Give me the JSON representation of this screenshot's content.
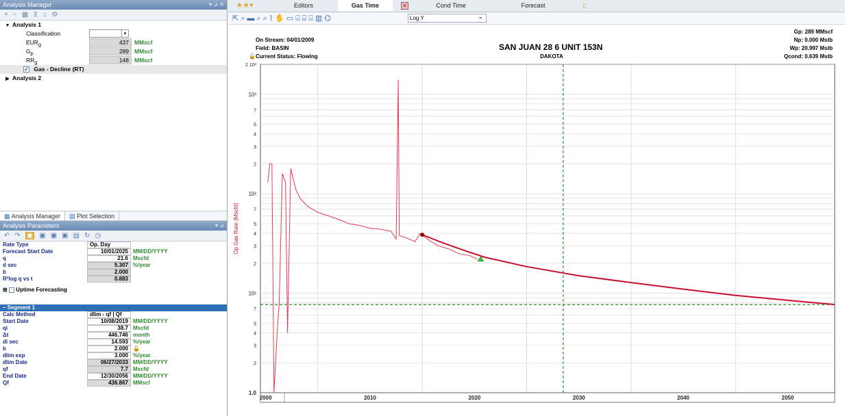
{
  "analysis_manager": {
    "title": "Analysis Manager",
    "analysis1": "Analysis 1",
    "classification_label": "Classification",
    "classification_value": "",
    "rows": [
      {
        "label": "EUR",
        "sub": "g",
        "value": "437",
        "unit": "MMscf"
      },
      {
        "label": "G",
        "sub": "p",
        "value": "289",
        "unit": "MMscf"
      },
      {
        "label": "RR",
        "sub": "g",
        "value": "148",
        "unit": "MMscf"
      }
    ],
    "decline_label": "Gas - Decline (RT)",
    "analysis2": "Analysis 2"
  },
  "tabs_left": {
    "manager": "Analysis Manager",
    "plot_selection": "Plot Selection"
  },
  "analysis_parameters": {
    "title": "Analysis Parameters",
    "rate_type_label": "Rate Type",
    "rate_type_value": "Op. Day",
    "forecast_start_label": "Forecast Start Date",
    "forecast_start_value": "10/01/2025",
    "forecast_start_unit": "MM/DD/YYYY",
    "q_label": "q",
    "q_value": "21.6",
    "q_unit": "Mscfd",
    "dsec_label": "d sec",
    "dsec_value": "5.307",
    "dsec_unit": "%/year",
    "b_label": "b",
    "b_value": "2.000",
    "r2_label": "R²log q vs t",
    "r2_value": "0.883",
    "uptime_label": "Uptime Forecasting"
  },
  "segment": {
    "title": "– Segment 1",
    "rows": [
      {
        "label": "Calc Method",
        "value": "dlim - qf | Qf",
        "unit": ""
      },
      {
        "label": "Start Date",
        "value": "10/08/2019",
        "unit": "MM/DD/YYYY"
      },
      {
        "label": "qi",
        "value": "38.7",
        "unit": "Mscfd"
      },
      {
        "label": "Δt",
        "value": "446.746",
        "unit": "month"
      },
      {
        "label": "di sec",
        "value": "14.593",
        "unit": "%/year"
      },
      {
        "label": "b",
        "value": "2.000",
        "unit": ""
      },
      {
        "label": "dlim exp",
        "value": "3.000",
        "unit": "%/year"
      },
      {
        "label": "dlim Date",
        "value": "06/27/2033",
        "unit": "MM/DD/YYYY"
      },
      {
        "label": "qf",
        "value": "7.7",
        "unit": "Mscfd"
      },
      {
        "label": "End Date",
        "value": "12/30/2056",
        "unit": "MM/DD/YYYY"
      },
      {
        "label": "Qf",
        "value": "436.867",
        "unit": "MMscf"
      }
    ]
  },
  "right_tabs": {
    "editors": "Editors",
    "gas_time": "Gas Time",
    "cond_time": "Cond Time",
    "forecast": "Forecast"
  },
  "scale_select": "Log Y",
  "plot_header": {
    "on_stream": "On Stream: 04/01/2009",
    "field": "Field: BASIN",
    "status": "Current Status: Flowing",
    "title": "SAN JUAN 28 6 UNIT 153N",
    "formation": "DAKOTA",
    "gp": "Gp: 289 MMscf",
    "np": "Np: 0.000 Mstb",
    "wp": "Wp: 20.997 Mstb",
    "qcond": "Qcond: 0.639 Mstb"
  },
  "chart_data": {
    "type": "line",
    "ylabel": "Op Gas Rate (Mscfd)",
    "yscale": "log",
    "ylim": [
      1,
      2000
    ],
    "xlim": [
      1999.5,
      2054.5
    ],
    "x_ticks": [
      "2000",
      "2010",
      "2020",
      "2030",
      "2040",
      "2050"
    ],
    "y_ticks": [
      "1.0",
      "2",
      "3",
      "4",
      "5",
      "7",
      "10¹",
      "2",
      "3",
      "4",
      "5",
      "7",
      "10²",
      "2",
      "3",
      "4",
      "5",
      "7",
      "10³",
      "2 10³"
    ],
    "series": [
      {
        "name": "history",
        "color": "#e8384f",
        "points": [
          [
            2000.2,
            130
          ],
          [
            2000.4,
            200
          ],
          [
            2000.6,
            200
          ],
          [
            2000.8,
            1.0
          ],
          [
            2001.1,
            4
          ],
          [
            2001.3,
            8
          ],
          [
            2001.6,
            160
          ],
          [
            2001.9,
            130
          ],
          [
            2002.1,
            4
          ],
          [
            2002.4,
            180
          ],
          [
            2002.9,
            110
          ],
          [
            2003.3,
            90
          ],
          [
            2004.0,
            75
          ],
          [
            2005.0,
            65
          ],
          [
            2006.0,
            60
          ],
          [
            2007.0,
            55
          ],
          [
            2008.0,
            50
          ],
          [
            2009.0,
            48
          ],
          [
            2010.0,
            45
          ],
          [
            2011.0,
            44
          ],
          [
            2012.0,
            42
          ],
          [
            2012.5,
            35
          ],
          [
            2012.7,
            1400
          ],
          [
            2012.8,
            38
          ],
          [
            2013.5,
            36
          ],
          [
            2014.3,
            33
          ],
          [
            2014.8,
            40
          ],
          [
            2015.5,
            35
          ],
          [
            2016.5,
            30
          ],
          [
            2017.5,
            28
          ],
          [
            2018.5,
            25
          ],
          [
            2019.5,
            24
          ],
          [
            2020.3,
            22
          ]
        ]
      },
      {
        "name": "forecast",
        "color": "#c8102e",
        "points": [
          [
            2015.0,
            38.7
          ],
          [
            2017.0,
            32
          ],
          [
            2019.0,
            27
          ],
          [
            2021.0,
            23
          ],
          [
            2025.0,
            18.5
          ],
          [
            2030.0,
            15
          ],
          [
            2035.0,
            12.8
          ],
          [
            2040.0,
            11
          ],
          [
            2045.0,
            9.5
          ],
          [
            2050.0,
            8.5
          ],
          [
            2054.5,
            7.7
          ]
        ]
      }
    ],
    "markers": [
      {
        "name": "start",
        "x": 2015.0,
        "y": 38.7,
        "color": "#8b0000"
      },
      {
        "name": "forecast-start",
        "x": 2020.6,
        "y": 22,
        "color": "#33cc33"
      }
    ],
    "vline_x": 2028.5,
    "hline_y": 7.7
  }
}
